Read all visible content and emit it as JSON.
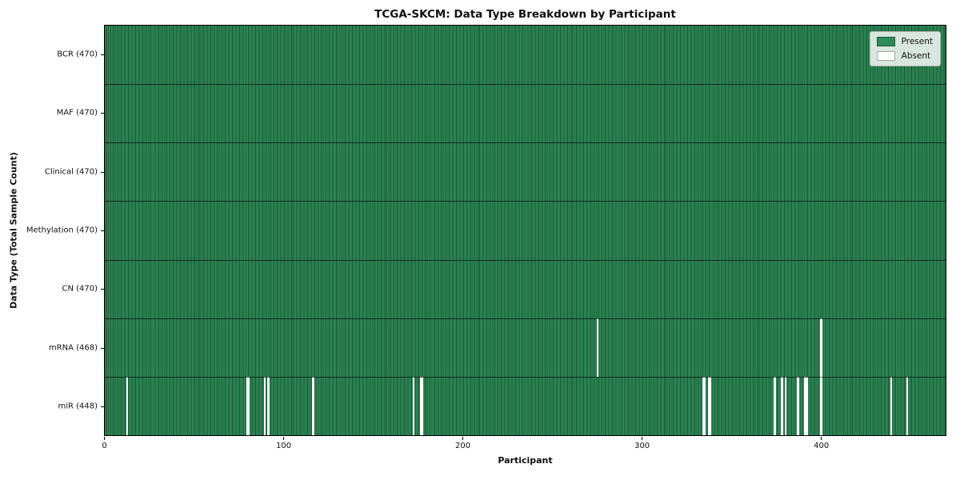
{
  "chart_data": {
    "type": "heatmap",
    "title": "TCGA-SKCM: Data Type Breakdown by Participant",
    "xlabel": "Participant",
    "ylabel": "Data Type (Total Sample Count)",
    "x_range": [
      0,
      470
    ],
    "x_ticks": [
      "0",
      "100",
      "200",
      "300",
      "400"
    ],
    "n_participants": 470,
    "grid": false,
    "legend_position": "upper right",
    "rows": [
      {
        "label": "BCR (470)",
        "data_type": "BCR",
        "present_count": 470,
        "absent_participants": []
      },
      {
        "label": "MAF (470)",
        "data_type": "MAF",
        "present_count": 470,
        "absent_participants": []
      },
      {
        "label": "Clinical (470)",
        "data_type": "Clinical",
        "present_count": 470,
        "absent_participants": []
      },
      {
        "label": "Methylation (470)",
        "data_type": "Methylation",
        "present_count": 470,
        "absent_participants": []
      },
      {
        "label": "CN (470)",
        "data_type": "CN",
        "present_count": 470,
        "absent_participants": []
      },
      {
        "label": "mRNA (468)",
        "data_type": "mRNA",
        "present_count": 468,
        "absent_participants": [
          275,
          400
        ]
      },
      {
        "label": "miR (448)",
        "data_type": "miR",
        "present_count": 448,
        "absent_participants": [
          12,
          79,
          80,
          89,
          91,
          116,
          172,
          176,
          177,
          334,
          335,
          337,
          338,
          374,
          378,
          380,
          387,
          391,
          392,
          400,
          439,
          448
        ]
      }
    ],
    "legend": [
      {
        "label": "Present",
        "color": "#2e8b57"
      },
      {
        "label": "Absent",
        "color": "#ffffff"
      }
    ],
    "colors": {
      "present": "#2e8b57",
      "absent": "#ffffff",
      "bar_edge": "#000000",
      "legend_border": "#b0b0b0"
    }
  }
}
